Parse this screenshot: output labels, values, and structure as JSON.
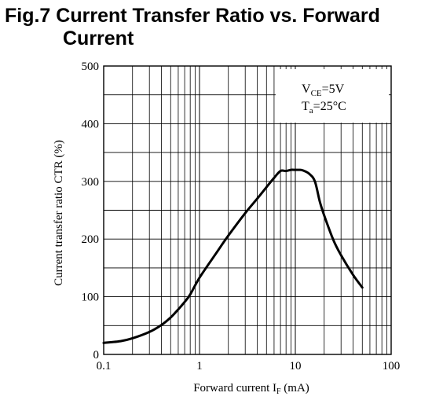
{
  "title": {
    "line1": "Fig.7 Current Transfer Ratio vs. Forward",
    "line2": "Current"
  },
  "chart_data": {
    "type": "line",
    "title": "Fig.7 Current Transfer Ratio vs. Forward Current",
    "xlabel": {
      "main": "Forward current I",
      "sub": "F",
      "unit": " (mA)"
    },
    "ylabel": "Current transfer ratio CTR (%)",
    "x_scale": "log",
    "xlim": [
      0.1,
      100
    ],
    "ylim": [
      0,
      500
    ],
    "x_ticks": [
      0.1,
      1,
      10,
      100
    ],
    "x_tick_labels": [
      "0.1",
      "1",
      "10",
      "100"
    ],
    "y_ticks": [
      0,
      100,
      200,
      300,
      400,
      500
    ],
    "y_tick_labels": [
      "0",
      "100",
      "200",
      "300",
      "400",
      "500"
    ],
    "grid": true,
    "annotation": {
      "line1": {
        "main": "V",
        "sub": "CE",
        "rest": "=5V"
      },
      "line2": {
        "main": "T",
        "sub": "a",
        "rest": "=25°C"
      }
    },
    "series": [
      {
        "x": [
          0.1,
          0.15,
          0.2,
          0.3,
          0.4,
          0.5,
          0.6,
          0.7,
          0.8,
          1,
          1.5,
          2,
          3,
          4,
          5,
          6,
          7,
          8,
          9,
          10,
          11,
          12,
          14,
          16,
          18,
          20,
          25,
          30,
          40,
          50
        ],
        "y": [
          20,
          23,
          28,
          39,
          51,
          64,
          78,
          91,
          104,
          133,
          176,
          206,
          245,
          270,
          290,
          306,
          318,
          318,
          320,
          320,
          320,
          319,
          313,
          300,
          265,
          241,
          198,
          172,
          138,
          116
        ]
      }
    ]
  }
}
